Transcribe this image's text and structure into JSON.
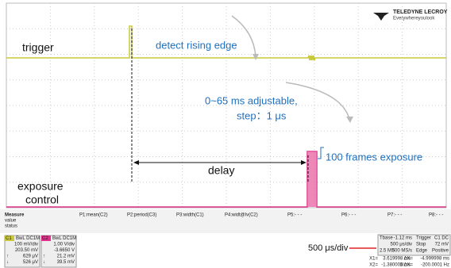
{
  "logo": {
    "brand": "TELEDYNE LECROY",
    "tagline": "Everywhereyoulook"
  },
  "annotations": {
    "trigger": "trigger",
    "detect": "detect rising edge",
    "adjust": "0~65 ms  adjustable,",
    "step": "step：1 μs",
    "frames": "100 frames exposure",
    "delay": "delay",
    "exposure": "exposure",
    "control": "control",
    "timebase_note": "500 μs/div"
  },
  "measure": {
    "header": [
      "Measure",
      "value",
      "status"
    ],
    "params": [
      "P1:mean(C2)",
      "P2:period(C3)",
      "P3:width(C1)",
      "P4:widt@lv(C2)",
      "P5:- - -",
      "P6:- - -",
      "P7:- - -",
      "P8:- - -"
    ]
  },
  "channels": [
    {
      "name": "C1",
      "coupling": "BwL DC1M",
      "rows": [
        "100 mV/div",
        "203.50 mV",
        "629 μV",
        "526 μV"
      ],
      "prefix": [
        "",
        "",
        "↑",
        "↓"
      ]
    },
    {
      "name": "C2",
      "coupling": "BwL DC1M",
      "rows": [
        "1.00 V/div",
        "-3.6650 V",
        "21.2 mV",
        "39.5 mV"
      ],
      "prefix": [
        "",
        "",
        "↑",
        "↓"
      ]
    }
  ],
  "timebase": {
    "rows": [
      [
        "Tbase",
        "-1.12 ms",
        "Trigger",
        "C1 DC"
      ],
      [
        "",
        "500 μs/div",
        "Stop",
        "72 mV"
      ],
      [
        "2.5 MS",
        "500 MS/s",
        "Edge",
        "Positive"
      ]
    ]
  },
  "cursors": [
    [
      "X1=",
      "3.619998 ms",
      "ΔX=",
      "-4.999998 ms"
    ],
    [
      "X2=",
      "-1.380000 ms",
      "1/ΔX=",
      "-200.0001 Hz"
    ]
  ]
}
